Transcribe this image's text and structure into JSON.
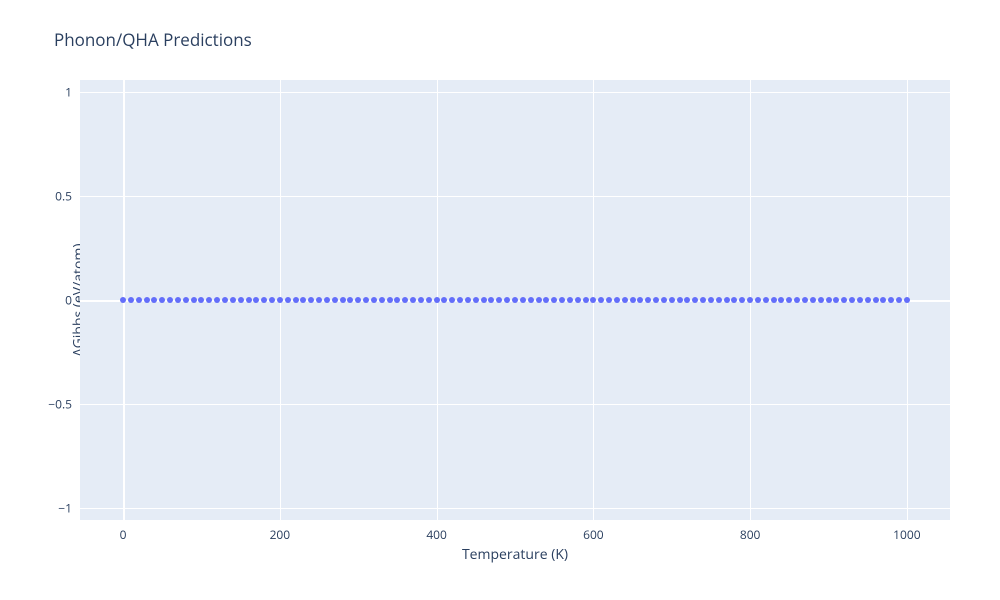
{
  "chart": {
    "type": "scatter",
    "title": "Phonon/QHA Predictions",
    "title_color": "#2a3f5f",
    "title_fontsize": 17,
    "background_color": "#ffffff",
    "plot_bgcolor": "#e5ecf6",
    "grid_color": "#ffffff",
    "tick_color": "#2a3f5f",
    "tick_fontsize": 12,
    "axis_title_fontsize": 14,
    "axis_title_color": "#2a3f5f",
    "marker_color": "#636efa",
    "marker_size": 6,
    "xaxis": {
      "title": "Temperature (K)",
      "min": -55,
      "max": 1055,
      "ticks": [
        0,
        200,
        400,
        600,
        800,
        1000
      ]
    },
    "yaxis": {
      "title": "ΔGibbs (eV/atom)",
      "min": -1.06,
      "max": 1.06,
      "ticks": [
        -1,
        -0.5,
        0,
        0.5,
        1
      ],
      "tick_labels": [
        "−1",
        "−0.5",
        "0",
        "0.5",
        "1"
      ]
    },
    "data": {
      "x": [
        0,
        10,
        20,
        30,
        40,
        50,
        60,
        70,
        80,
        90,
        100,
        110,
        120,
        130,
        140,
        150,
        160,
        170,
        180,
        190,
        200,
        210,
        220,
        230,
        240,
        250,
        260,
        270,
        280,
        290,
        300,
        310,
        320,
        330,
        340,
        350,
        360,
        370,
        380,
        390,
        400,
        410,
        420,
        430,
        440,
        450,
        460,
        470,
        480,
        490,
        500,
        510,
        520,
        530,
        540,
        550,
        560,
        570,
        580,
        590,
        600,
        610,
        620,
        630,
        640,
        650,
        660,
        670,
        680,
        690,
        700,
        710,
        720,
        730,
        740,
        750,
        760,
        770,
        780,
        790,
        800,
        810,
        820,
        830,
        840,
        850,
        860,
        870,
        880,
        890,
        900,
        910,
        920,
        930,
        940,
        950,
        960,
        970,
        980,
        990,
        1000
      ],
      "y": [
        0,
        0,
        0,
        0,
        0,
        0,
        0,
        0,
        0,
        0,
        0,
        0,
        0,
        0,
        0,
        0,
        0,
        0,
        0,
        0,
        0,
        0,
        0,
        0,
        0,
        0,
        0,
        0,
        0,
        0,
        0,
        0,
        0,
        0,
        0,
        0,
        0,
        0,
        0,
        0,
        0,
        0,
        0,
        0,
        0,
        0,
        0,
        0,
        0,
        0,
        0,
        0,
        0,
        0,
        0,
        0,
        0,
        0,
        0,
        0,
        0,
        0,
        0,
        0,
        0,
        0,
        0,
        0,
        0,
        0,
        0,
        0,
        0,
        0,
        0,
        0,
        0,
        0,
        0,
        0,
        0,
        0,
        0,
        0,
        0,
        0,
        0,
        0,
        0,
        0,
        0,
        0,
        0,
        0,
        0,
        0,
        0,
        0,
        0,
        0,
        0
      ]
    }
  }
}
